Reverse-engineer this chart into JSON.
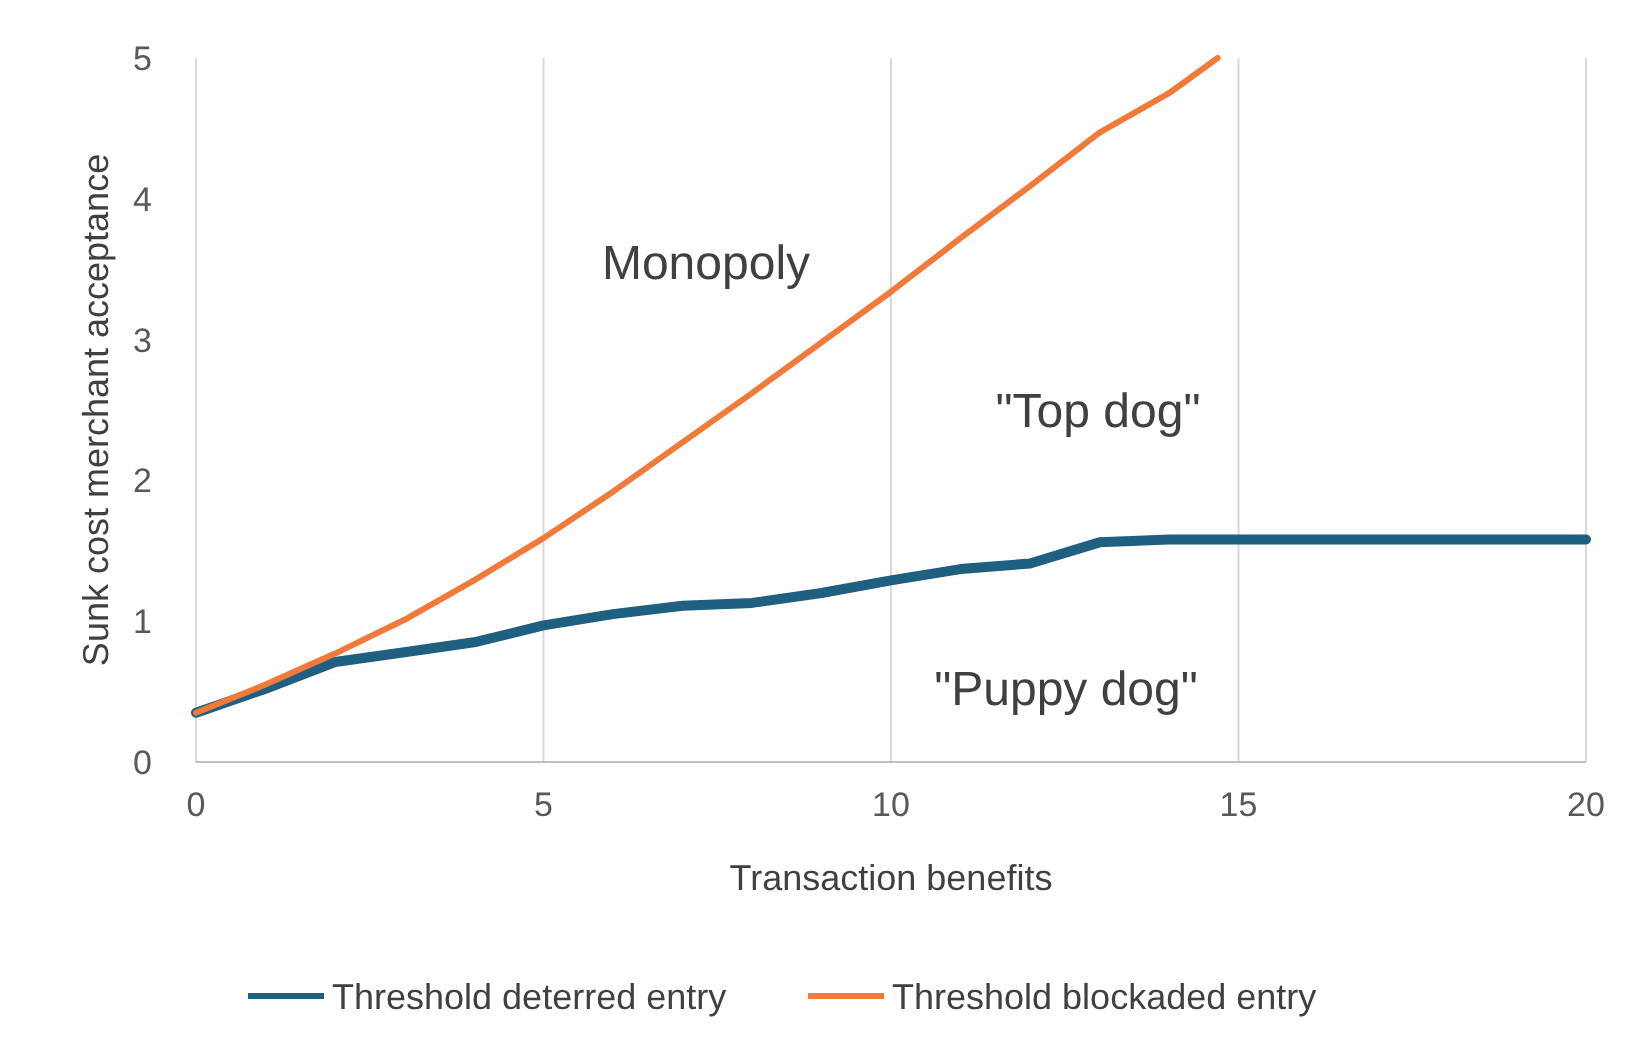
{
  "chart_data": {
    "type": "line",
    "xlabel": "Transaction benefits",
    "ylabel": "Sunk cost merchant acceptance",
    "xlim": [
      0,
      20
    ],
    "xticks": [
      0,
      5,
      10,
      15,
      20
    ],
    "ylim": [
      0,
      5
    ],
    "yticks": [
      0,
      1,
      2,
      3,
      4,
      5
    ],
    "grid": "x",
    "legend": "bottom",
    "marker": "none",
    "line_style": "solid",
    "series": [
      {
        "name": "Threshold deterred entry",
        "color": "#1f5f80",
        "x": [
          0,
          1,
          2,
          3,
          4,
          5,
          6,
          7,
          8,
          9,
          10,
          11,
          12,
          13,
          14,
          15,
          16,
          17,
          18,
          19,
          20
        ],
        "values": [
          0.35,
          0.52,
          0.71,
          0.78,
          0.85,
          0.97,
          1.05,
          1.11,
          1.13,
          1.2,
          1.29,
          1.37,
          1.41,
          1.56,
          1.58,
          1.58,
          1.58,
          1.58,
          1.58,
          1.58,
          1.58
        ]
      },
      {
        "name": "Threshold blockaded entry",
        "color": "#f07a3a",
        "x": [
          0,
          1,
          2,
          3,
          4,
          5,
          6,
          7,
          8,
          9,
          10,
          11,
          12,
          13,
          14,
          14.7
        ],
        "values": [
          0.35,
          0.55,
          0.77,
          1.01,
          1.29,
          1.59,
          1.92,
          2.27,
          2.62,
          2.98,
          3.34,
          3.72,
          4.09,
          4.47,
          4.75,
          5
        ]
      }
    ],
    "annotations": [
      "Monopoly",
      "\"Top dog\"",
      "\"Puppy dog\""
    ]
  }
}
